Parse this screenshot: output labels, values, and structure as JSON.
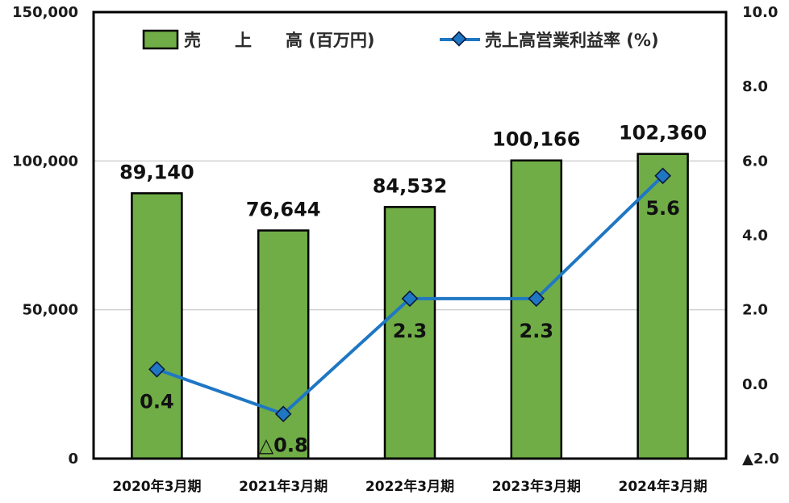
{
  "chart_data": {
    "type": "bar",
    "categories": [
      "2020年3月期",
      "2021年3月期",
      "2022年3月期",
      "2023年3月期",
      "2024年3月期"
    ],
    "series": [
      {
        "name": "売　　上　　高 (百万円)",
        "type": "bar",
        "axis": "left",
        "values": [
          89140,
          76644,
          84532,
          100166,
          102360
        ],
        "labels": [
          "89,140",
          "76,644",
          "84,532",
          "100,166",
          "102,360"
        ],
        "color": "#70ad47"
      },
      {
        "name": "売上高営業利益率 (%)",
        "type": "line",
        "axis": "right",
        "values": [
          0.4,
          -0.8,
          2.3,
          2.3,
          5.6
        ],
        "labels": [
          "0.4",
          "△0.8",
          "2.3",
          "2.3",
          "5.6"
        ],
        "color": "#1f77c4"
      }
    ],
    "y_left": {
      "range": [
        0,
        150000
      ],
      "ticks": [
        0,
        50000,
        100000,
        150000
      ],
      "tick_labels": [
        "0",
        "50,000",
        "100,000",
        "150,000"
      ]
    },
    "y_right": {
      "range": [
        -2,
        10
      ],
      "ticks": [
        -2,
        0,
        2,
        4,
        6,
        8,
        10
      ],
      "tick_labels": [
        "▲2.0",
        "0.0",
        "2.0",
        "4.0",
        "6.0",
        "8.0",
        "10.0"
      ]
    },
    "grid": true,
    "legend_position": "top"
  }
}
